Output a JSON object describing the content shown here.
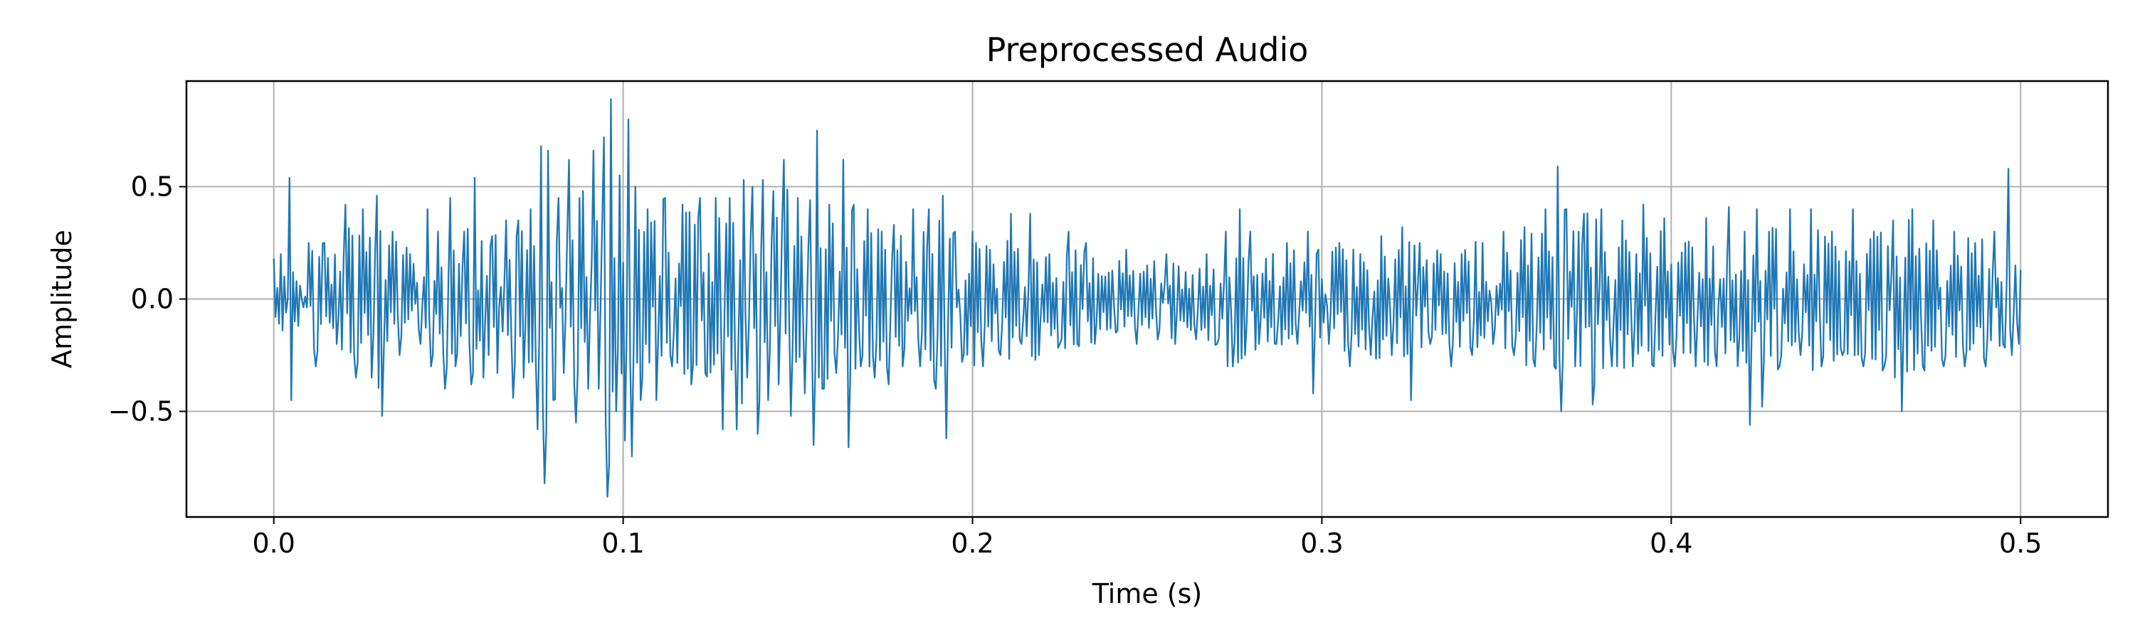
{
  "chart_data": {
    "type": "line",
    "title": "Preprocessed Audio",
    "xlabel": "Time (s)",
    "ylabel": "Amplitude",
    "xlim": [
      -0.025,
      0.525
    ],
    "ylim": [
      -0.97,
      0.97
    ],
    "xticks": [
      0.0,
      0.1,
      0.2,
      0.3,
      0.4,
      0.5
    ],
    "xtick_labels": [
      "0.0",
      "0.1",
      "0.2",
      "0.3",
      "0.4",
      "0.5"
    ],
    "yticks": [
      -0.5,
      0.0,
      0.5
    ],
    "ytick_labels": [
      "−0.5",
      "0.0",
      "0.5"
    ],
    "grid": true,
    "series": [
      {
        "color": "#1f77b4",
        "sample_spacing_s": 0.0005,
        "x_start": 0.0,
        "x_end": 0.5,
        "points": [
          [
            0.0,
            0.18
          ],
          [
            0.0005,
            -0.08
          ],
          [
            0.001,
            0.05
          ],
          [
            0.0015,
            -0.11
          ],
          [
            0.002,
            0.2
          ],
          [
            0.0025,
            -0.14
          ],
          [
            0.003,
            0.1
          ],
          [
            0.0035,
            -0.06
          ],
          [
            0.004,
            0.0
          ],
          [
            0.0045,
            0.54
          ],
          [
            0.005,
            -0.45
          ],
          [
            0.0055,
            0.12
          ],
          [
            0.006,
            -0.1
          ],
          [
            0.0065,
            0.08
          ],
          [
            0.007,
            -0.12
          ],
          [
            0.0075,
            0.06
          ],
          [
            0.008,
            0.0
          ],
          [
            0.01,
            0.25
          ],
          [
            0.012,
            -0.3
          ],
          [
            0.0145,
            0.25
          ],
          [
            0.018,
            -0.2
          ],
          [
            0.0205,
            0.42
          ],
          [
            0.0235,
            -0.35
          ],
          [
            0.0255,
            0.4
          ],
          [
            0.028,
            -0.35
          ],
          [
            0.0295,
            0.46
          ],
          [
            0.031,
            -0.52
          ],
          [
            0.034,
            0.3
          ],
          [
            0.036,
            -0.25
          ],
          [
            0.039,
            0.2
          ],
          [
            0.042,
            -0.2
          ],
          [
            0.044,
            0.4
          ],
          [
            0.045,
            -0.3
          ],
          [
            0.047,
            0.3
          ],
          [
            0.049,
            -0.4
          ],
          [
            0.0505,
            0.45
          ],
          [
            0.052,
            -0.3
          ],
          [
            0.0545,
            0.3
          ],
          [
            0.0565,
            -0.38
          ],
          [
            0.0575,
            0.54
          ],
          [
            0.06,
            -0.35
          ],
          [
            0.0625,
            0.28
          ],
          [
            0.064,
            -0.33
          ],
          [
            0.0665,
            0.35
          ],
          [
            0.0685,
            -0.44
          ],
          [
            0.07,
            0.35
          ],
          [
            0.0715,
            -0.35
          ],
          [
            0.0735,
            0.4
          ],
          [
            0.0755,
            -0.58
          ],
          [
            0.0765,
            0.68
          ],
          [
            0.0775,
            -0.82
          ],
          [
            0.0785,
            0.66
          ],
          [
            0.08,
            -0.45
          ],
          [
            0.0815,
            0.45
          ],
          [
            0.083,
            -0.33
          ],
          [
            0.0845,
            0.62
          ],
          [
            0.0865,
            -0.55
          ],
          [
            0.0885,
            0.48
          ],
          [
            0.09,
            -0.4
          ],
          [
            0.0915,
            0.66
          ],
          [
            0.093,
            -0.4
          ],
          [
            0.0945,
            0.72
          ],
          [
            0.0955,
            -0.88
          ],
          [
            0.0965,
            0.89
          ],
          [
            0.098,
            -0.5
          ],
          [
            0.099,
            0.55
          ],
          [
            0.1005,
            -0.63
          ],
          [
            0.1015,
            0.8
          ],
          [
            0.1025,
            -0.7
          ],
          [
            0.1035,
            0.5
          ],
          [
            0.105,
            -0.45
          ],
          [
            0.107,
            0.4
          ],
          [
            0.1095,
            -0.45
          ],
          [
            0.112,
            0.45
          ],
          [
            0.114,
            -0.3
          ],
          [
            0.117,
            0.42
          ],
          [
            0.1195,
            -0.38
          ],
          [
            0.122,
            0.45
          ],
          [
            0.1235,
            -0.33
          ],
          [
            0.1265,
            0.45
          ],
          [
            0.1285,
            -0.58
          ],
          [
            0.1305,
            0.45
          ],
          [
            0.1325,
            -0.58
          ],
          [
            0.1345,
            0.53
          ],
          [
            0.1355,
            -0.35
          ],
          [
            0.137,
            0.5
          ],
          [
            0.1385,
            -0.6
          ],
          [
            0.14,
            0.53
          ],
          [
            0.1415,
            -0.45
          ],
          [
            0.143,
            0.48
          ],
          [
            0.1445,
            -0.38
          ],
          [
            0.146,
            0.62
          ],
          [
            0.148,
            -0.52
          ],
          [
            0.15,
            0.45
          ],
          [
            0.152,
            -0.42
          ],
          [
            0.1535,
            0.44
          ],
          [
            0.1545,
            -0.65
          ],
          [
            0.1555,
            0.75
          ],
          [
            0.157,
            -0.4
          ],
          [
            0.159,
            0.42
          ],
          [
            0.161,
            -0.33
          ],
          [
            0.163,
            0.62
          ],
          [
            0.1645,
            -0.66
          ],
          [
            0.166,
            0.42
          ],
          [
            0.168,
            -0.3
          ],
          [
            0.17,
            0.4
          ],
          [
            0.172,
            -0.35
          ],
          [
            0.174,
            0.3
          ],
          [
            0.176,
            -0.38
          ],
          [
            0.1775,
            0.33
          ],
          [
            0.18,
            -0.3
          ],
          [
            0.183,
            0.4
          ],
          [
            0.185,
            -0.3
          ],
          [
            0.1875,
            0.4
          ],
          [
            0.1895,
            -0.4
          ],
          [
            0.1915,
            0.46
          ],
          [
            0.1925,
            -0.62
          ],
          [
            0.195,
            0.3
          ],
          [
            0.197,
            -0.28
          ],
          [
            0.2,
            0.3
          ],
          [
            0.203,
            -0.3
          ],
          [
            0.205,
            0.22
          ],
          [
            0.208,
            -0.25
          ],
          [
            0.211,
            0.38
          ],
          [
            0.214,
            -0.2
          ],
          [
            0.2165,
            0.38
          ],
          [
            0.219,
            -0.25
          ],
          [
            0.222,
            0.2
          ],
          [
            0.225,
            -0.2
          ],
          [
            0.2275,
            0.3
          ],
          [
            0.23,
            -0.2
          ],
          [
            0.2325,
            0.25
          ],
          [
            0.235,
            -0.2
          ],
          [
            0.238,
            0.1
          ],
          [
            0.241,
            -0.15
          ],
          [
            0.244,
            0.22
          ],
          [
            0.247,
            -0.2
          ],
          [
            0.25,
            0.15
          ],
          [
            0.253,
            -0.18
          ],
          [
            0.2555,
            0.2
          ],
          [
            0.258,
            -0.2
          ],
          [
            0.261,
            0.12
          ],
          [
            0.264,
            -0.18
          ],
          [
            0.267,
            0.2
          ],
          [
            0.27,
            -0.2
          ],
          [
            0.2725,
            0.3
          ],
          [
            0.2745,
            -0.3
          ],
          [
            0.2765,
            0.4
          ],
          [
            0.278,
            -0.25
          ],
          [
            0.2795,
            0.3
          ],
          [
            0.282,
            -0.2
          ],
          [
            0.284,
            0.18
          ],
          [
            0.287,
            -0.2
          ],
          [
            0.29,
            0.25
          ],
          [
            0.293,
            -0.2
          ],
          [
            0.296,
            0.3
          ],
          [
            0.2975,
            -0.42
          ],
          [
            0.299,
            0.22
          ],
          [
            0.302,
            -0.2
          ],
          [
            0.305,
            0.25
          ],
          [
            0.308,
            -0.3
          ],
          [
            0.311,
            0.2
          ],
          [
            0.314,
            -0.25
          ],
          [
            0.317,
            0.28
          ],
          [
            0.32,
            -0.25
          ],
          [
            0.323,
            0.32
          ],
          [
            0.3255,
            -0.45
          ],
          [
            0.328,
            0.25
          ],
          [
            0.331,
            -0.2
          ],
          [
            0.334,
            0.2
          ],
          [
            0.337,
            -0.3
          ],
          [
            0.34,
            0.2
          ],
          [
            0.343,
            -0.25
          ],
          [
            0.346,
            0.25
          ],
          [
            0.349,
            -0.2
          ],
          [
            0.352,
            0.3
          ],
          [
            0.355,
            -0.25
          ],
          [
            0.358,
            0.32
          ],
          [
            0.361,
            -0.3
          ],
          [
            0.364,
            0.4
          ],
          [
            0.3665,
            -0.3
          ],
          [
            0.3675,
            0.59
          ],
          [
            0.3685,
            -0.5
          ],
          [
            0.37,
            0.4
          ],
          [
            0.3725,
            -0.3
          ],
          [
            0.375,
            0.38
          ],
          [
            0.3775,
            -0.47
          ],
          [
            0.38,
            0.4
          ],
          [
            0.383,
            -0.3
          ],
          [
            0.386,
            0.35
          ],
          [
            0.389,
            -0.3
          ],
          [
            0.392,
            0.42
          ],
          [
            0.395,
            -0.3
          ],
          [
            0.398,
            0.36
          ],
          [
            0.401,
            -0.3
          ],
          [
            0.404,
            0.25
          ],
          [
            0.407,
            -0.3
          ],
          [
            0.41,
            0.36
          ],
          [
            0.413,
            -0.3
          ],
          [
            0.4165,
            0.41
          ],
          [
            0.419,
            -0.3
          ],
          [
            0.421,
            0.3
          ],
          [
            0.4225,
            -0.56
          ],
          [
            0.4245,
            0.4
          ],
          [
            0.426,
            -0.48
          ],
          [
            0.428,
            0.3
          ],
          [
            0.431,
            -0.3
          ],
          [
            0.434,
            0.4
          ],
          [
            0.437,
            -0.25
          ],
          [
            0.44,
            0.4
          ],
          [
            0.443,
            -0.3
          ],
          [
            0.446,
            0.3
          ],
          [
            0.449,
            -0.25
          ],
          [
            0.452,
            0.4
          ],
          [
            0.455,
            -0.3
          ],
          [
            0.458,
            0.3
          ],
          [
            0.461,
            -0.3
          ],
          [
            0.4635,
            0.35
          ],
          [
            0.466,
            -0.5
          ],
          [
            0.469,
            0.4
          ],
          [
            0.472,
            -0.3
          ],
          [
            0.475,
            0.35
          ],
          [
            0.478,
            -0.3
          ],
          [
            0.481,
            0.3
          ],
          [
            0.484,
            -0.3
          ],
          [
            0.487,
            0.25
          ],
          [
            0.49,
            -0.3
          ],
          [
            0.4925,
            0.3
          ],
          [
            0.495,
            -0.2
          ],
          [
            0.4965,
            0.58
          ],
          [
            0.4975,
            -0.25
          ],
          [
            0.4985,
            0.15
          ],
          [
            0.4995,
            -0.2
          ],
          [
            0.5,
            0.13
          ]
        ]
      }
    ]
  }
}
